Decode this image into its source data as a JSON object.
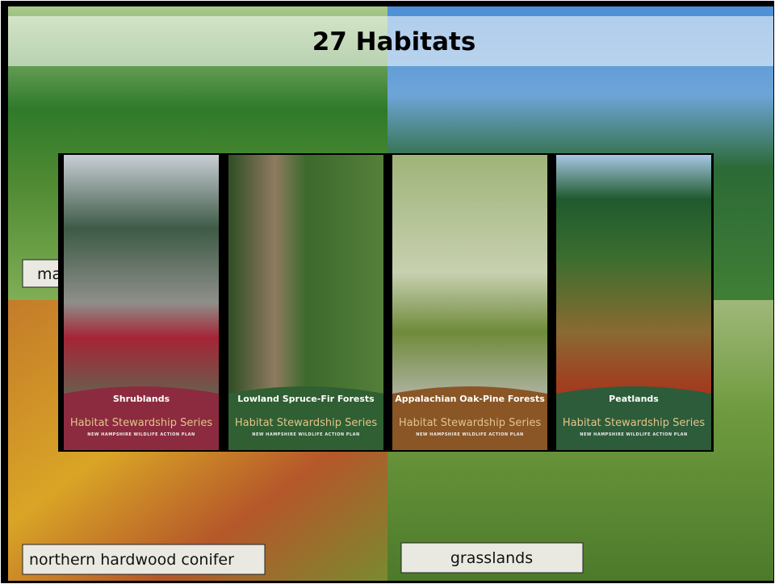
{
  "title": "27 Habitats",
  "labels": [
    "ma",
    "northern hardwood conifer",
    "grasslands"
  ],
  "brochures": [
    {
      "title": "Shrublands",
      "series": "Habitat Stewardship Series",
      "subtitle": "NEW HAMPSHIRE WILDLIFE ACTION PLAN"
    },
    {
      "title": "Lowland Spruce-Fir Forests",
      "series": "Habitat Stewardship Series",
      "subtitle": "NEW HAMPSHIRE WILDLIFE ACTION PLAN"
    },
    {
      "title": "Appalachian Oak-Pine Forests",
      "series": "Habitat Stewardship Series",
      "subtitle": "NEW HAMPSHIRE WILDLIFE ACTION PLAN"
    },
    {
      "title": "Peatlands",
      "series": "Habitat Stewardship Series",
      "subtitle": "NEW HAMPSHIRE WILDLIFE ACTION PLAN"
    }
  ]
}
